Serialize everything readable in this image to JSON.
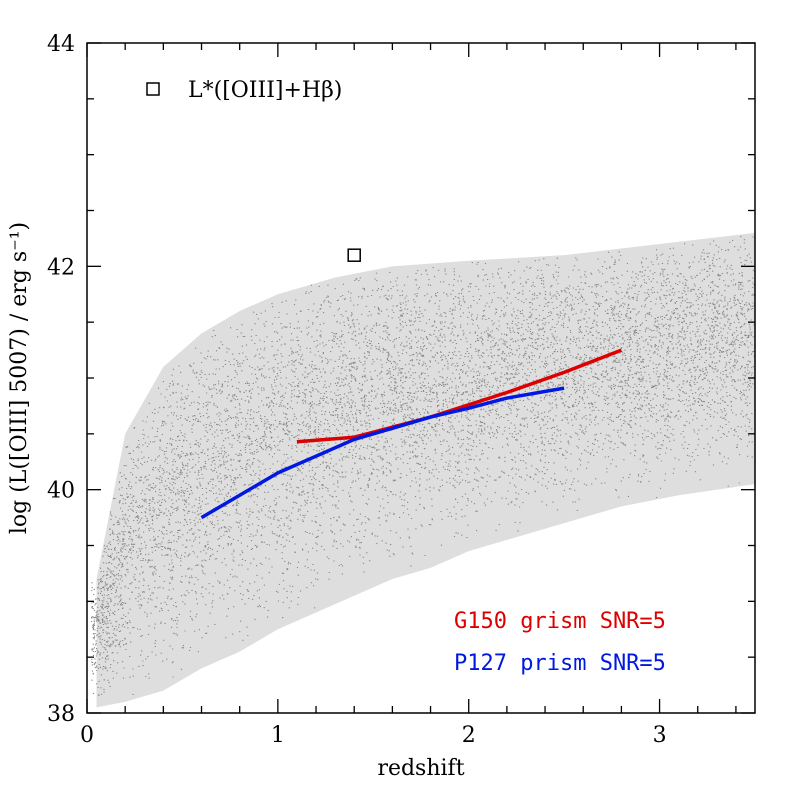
{
  "chart_data": {
    "type": "scatter",
    "title": "",
    "xlabel": "redshift",
    "ylabel": "log (L([OIII] 5007) / erg s⁻¹)",
    "xlim": [
      0,
      3.5
    ],
    "ylim": [
      38,
      44
    ],
    "x_ticks": [
      0,
      1,
      2,
      3
    ],
    "y_ticks": [
      38,
      40,
      42,
      44
    ],
    "x_tick_labels": [
      "0",
      "1",
      "2",
      "3"
    ],
    "y_tick_labels": [
      "38",
      "40",
      "42",
      "44"
    ],
    "grid": false,
    "point_cloud": {
      "color": "#8a8a8a",
      "lower_envelope": [
        [
          0.05,
          38.05
        ],
        [
          0.2,
          38.1
        ],
        [
          0.4,
          38.2
        ],
        [
          0.6,
          38.4
        ],
        [
          0.8,
          38.55
        ],
        [
          1.0,
          38.75
        ],
        [
          1.2,
          38.9
        ],
        [
          1.4,
          39.05
        ],
        [
          1.6,
          39.2
        ],
        [
          1.8,
          39.3
        ],
        [
          2.0,
          39.45
        ],
        [
          2.2,
          39.55
        ],
        [
          2.5,
          39.7
        ],
        [
          2.8,
          39.85
        ],
        [
          3.1,
          39.95
        ],
        [
          3.5,
          40.05
        ]
      ],
      "upper_envelope": [
        [
          0.05,
          39.2
        ],
        [
          0.2,
          40.5
        ],
        [
          0.4,
          41.1
        ],
        [
          0.6,
          41.4
        ],
        [
          0.8,
          41.6
        ],
        [
          1.0,
          41.75
        ],
        [
          1.3,
          41.9
        ],
        [
          1.6,
          42.0
        ],
        [
          2.0,
          42.05
        ],
        [
          2.5,
          42.1
        ],
        [
          3.0,
          42.2
        ],
        [
          3.5,
          42.3
        ]
      ]
    },
    "series": [
      {
        "name": "G150 grism SNR=5",
        "color": "#dd0000",
        "x": [
          1.1,
          1.4,
          1.8,
          2.2,
          2.5,
          2.8
        ],
        "y": [
          40.43,
          40.47,
          40.65,
          40.87,
          41.05,
          41.25
        ]
      },
      {
        "name": "P127 prism SNR=5",
        "color": "#0018e0",
        "x": [
          0.6,
          0.8,
          1.0,
          1.2,
          1.4,
          1.6,
          1.8,
          2.0,
          2.2,
          2.5
        ],
        "y": [
          39.75,
          39.95,
          40.15,
          40.3,
          40.45,
          40.55,
          40.65,
          40.73,
          40.82,
          40.91
        ]
      }
    ],
    "marker_point": {
      "x": 1.4,
      "y": 42.1,
      "shape": "open-square",
      "color": "#000000"
    },
    "annotation": {
      "text": "L*([OIII]+Hβ)"
    },
    "legend": {
      "placement": "bottom-right",
      "entries": [
        "G150 grism SNR=5",
        "P127 prism SNR=5"
      ]
    }
  }
}
